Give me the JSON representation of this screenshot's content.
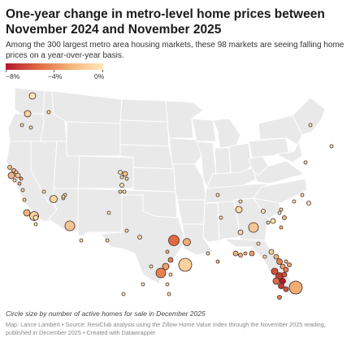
{
  "title": "One-year change in metro-level home prices between November 2024 and November 2025",
  "subtitle": "Among the 300 largest metro area housing markets, these 98 markets are seeing falling home prices on a year-over-year basis.",
  "legend": {
    "labels": [
      "−8%",
      "−4%",
      "0%"
    ],
    "stops": [
      -8,
      -4,
      0
    ],
    "colors": [
      "#b2182b",
      "#e06a43",
      "#f5b47a",
      "#fde9b8"
    ]
  },
  "caption": "Circle size by number of active homes for sale in December 2025",
  "credits": "Map: Lance Lambert • Source: ResiClub analysis using the Zillow Home Value Index through the November 2025 reading, published in December 2025 • Created with Datawrapper",
  "map": {
    "region": "Contiguous United States",
    "encoding": {
      "color": "One-year change in home prices (%)",
      "size": "Active homes for sale in December 2025"
    },
    "marker_count_visible": 98
  }
}
